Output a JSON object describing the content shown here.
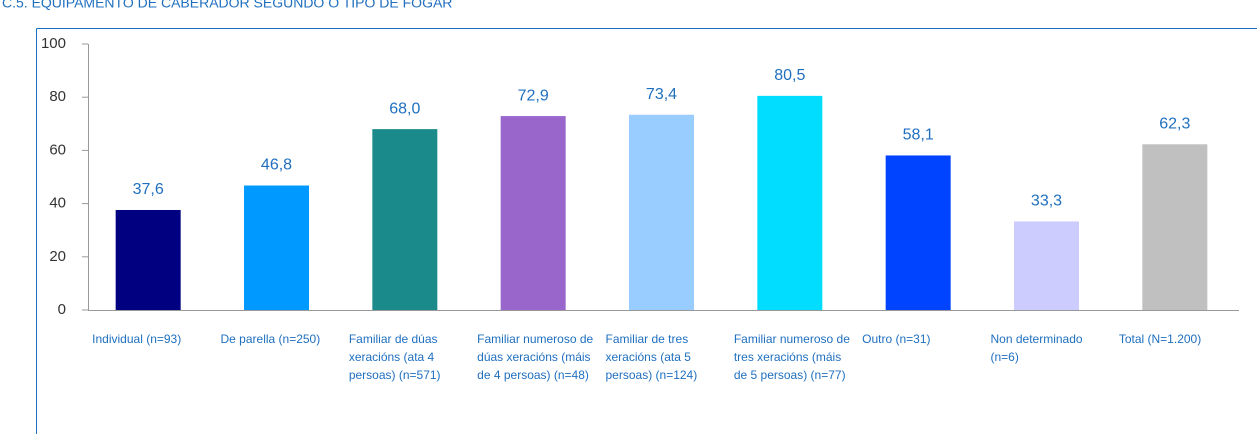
{
  "chart_data": {
    "type": "bar",
    "title": "C.5. EQUIPAMENTO DE CABERADOR SEGUNDO O TIPO DE FOGAR",
    "categories": [
      "Individual (n=93)",
      "De parella (n=250)",
      "Familiar de dúas xeracións (ata 4 persoas) (n=571)",
      "Familiar numeroso de dúas xeracións (máis de 4 persoas) (n=48)",
      "Familiar de tres xeracións (ata 5 persoas) (n=124)",
      "Familiar numeroso de tres xeracións (máis de 5 persoas) (n=77)",
      "Outro (n=31)",
      "Non determinado (n=6)",
      "Total (N=1.200)"
    ],
    "values": [
      37.6,
      46.8,
      68.0,
      72.9,
      73.4,
      80.5,
      58.1,
      33.3,
      62.3
    ],
    "value_labels": [
      "37,6",
      "46,8",
      "68,0",
      "72,9",
      "73,4",
      "80,5",
      "58,1",
      "33,3",
      "62,3"
    ],
    "colors": [
      "#000080",
      "#0099ff",
      "#1a8a8a",
      "#9966cc",
      "#99ccff",
      "#00ddff",
      "#0044ff",
      "#ccccff",
      "#c0c0c0"
    ],
    "ylim": [
      0,
      100
    ],
    "yticks": [
      0,
      20,
      40,
      60,
      80,
      100
    ]
  }
}
